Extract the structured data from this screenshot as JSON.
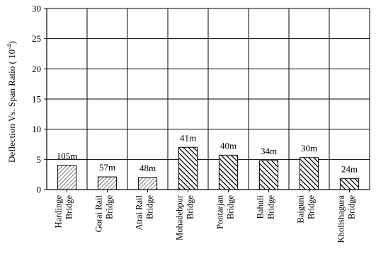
{
  "chart_data": {
    "type": "bar",
    "ylabel": "Deflection Vs. Span Ratio",
    "ylabel_unit_base": "10",
    "ylabel_unit_exp": "-4",
    "ylim": [
      0,
      30
    ],
    "yticks": [
      0,
      5,
      10,
      15,
      20,
      25,
      30
    ],
    "grid": true,
    "categories": [
      [
        "Hardinge",
        "Bridge"
      ],
      [
        "Gorai Rail",
        "Bridge"
      ],
      [
        "Atrai Rail",
        "Bridge"
      ],
      [
        "Mohadebpur",
        "Bridge"
      ],
      [
        "Pontarjan",
        "Bridge"
      ],
      [
        "Bahuli",
        "Bridge"
      ],
      [
        "Baiguni",
        "Bridge"
      ],
      [
        "Kholishagura",
        "Bridge"
      ]
    ],
    "values": [
      4.0,
      2.1,
      2.0,
      7.0,
      5.7,
      4.8,
      5.3,
      1.8
    ],
    "data_labels": [
      "105m",
      "57m",
      "48m",
      "41m",
      "40m",
      "34m",
      "30m",
      "24m"
    ],
    "patterns": [
      "light-hatch",
      "light-hatch",
      "light-hatch",
      "dense-hatch",
      "dense-hatch",
      "dense-hatch",
      "dense-hatch",
      "dense-hatch"
    ]
  }
}
